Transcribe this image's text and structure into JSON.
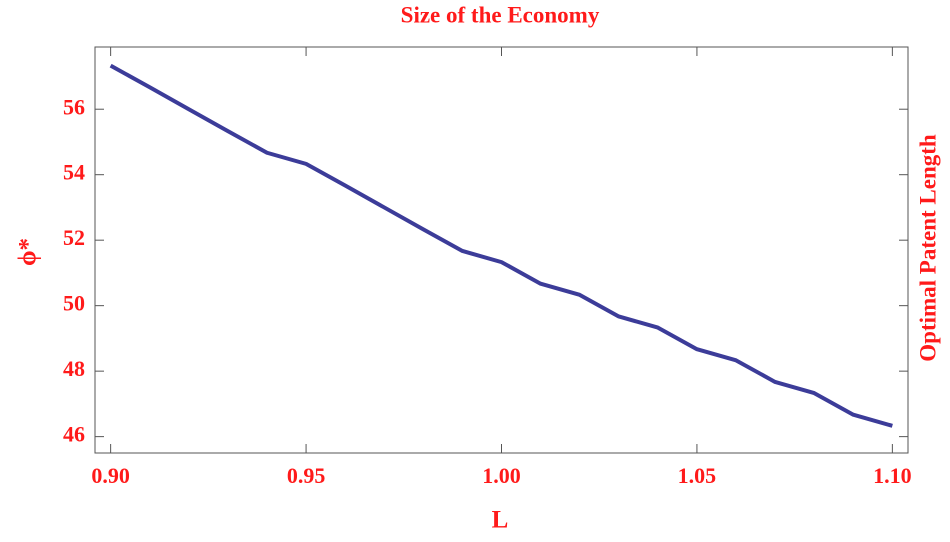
{
  "chart_data": {
    "type": "line",
    "title": "Size of the Economy",
    "x_label": "L",
    "y_label": "ϕ*",
    "y2_label": "Optimal Patent Length",
    "x": [
      0.9,
      0.91,
      0.92,
      0.93,
      0.94,
      0.95,
      0.96,
      0.97,
      0.98,
      0.99,
      1.0,
      1.01,
      1.02,
      1.03,
      1.04,
      1.05,
      1.06,
      1.07,
      1.08,
      1.09,
      1.1
    ],
    "series": [
      {
        "name": "ϕ*",
        "color": "#3c3c99",
        "values": [
          57.33,
          56.67,
          56.0,
          55.33,
          54.67,
          54.33,
          53.67,
          53.0,
          52.33,
          51.67,
          51.33,
          50.67,
          50.33,
          49.67,
          49.33,
          48.67,
          48.33,
          47.67,
          47.33,
          46.67,
          46.33
        ]
      }
    ],
    "xlim": [
      0.896,
      1.104
    ],
    "xticks": [
      {
        "value": 0.9,
        "label": "0.90"
      },
      {
        "value": 0.95,
        "label": "0.95"
      },
      {
        "value": 1.0,
        "label": "1.00"
      },
      {
        "value": 1.05,
        "label": "1.05"
      },
      {
        "value": 1.1,
        "label": "1.10"
      }
    ],
    "ylim": [
      45.5,
      57.9
    ],
    "yticks": [
      46,
      48,
      50,
      52,
      54,
      56
    ],
    "grid": false
  }
}
